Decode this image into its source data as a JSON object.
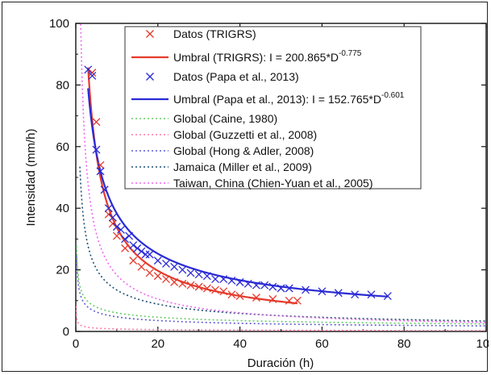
{
  "chart_data": {
    "type": "line",
    "xlabel": "Duración (h)",
    "ylabel": "Intensidad (mm/h)",
    "xlim": [
      0,
      100
    ],
    "ylim": [
      0,
      100
    ],
    "x_ticks": [
      "0",
      "20",
      "40",
      "60",
      "80",
      "100"
    ],
    "y_ticks": [
      "0",
      "20",
      "40",
      "60",
      "80",
      "100"
    ],
    "grid": false,
    "legend_position": "top-right",
    "colors": {
      "trigrs": "#e53b2c",
      "papa": "#2a2ad6",
      "caine": "#66cc66",
      "guzzetti": "#ff7aa8",
      "hong": "#5c5cd6",
      "miller": "#1f4f6f",
      "taiwan": "#ee66ee"
    },
    "series": [
      {
        "key": "datos_trigrs",
        "kind": "scatter",
        "name": "Datos (TRIGRS)",
        "x": [
          4,
          5,
          6,
          7,
          8,
          9,
          10,
          12,
          14,
          16,
          18,
          20,
          22,
          24,
          26,
          28,
          30,
          32,
          34,
          36,
          38,
          40,
          44,
          48,
          52,
          54
        ],
        "y": [
          84,
          68,
          54,
          46,
          38,
          35,
          31,
          27,
          23,
          21,
          19,
          18,
          17,
          16,
          15.5,
          15,
          14.5,
          14,
          13.5,
          13,
          12,
          11.5,
          11,
          10.5,
          10,
          10
        ]
      },
      {
        "key": "umbral_trigrs",
        "kind": "power",
        "name_prefix": "Umbral (TRIGRS): I = 200.865*D",
        "name_exp": "-0.775",
        "a": 200.865,
        "b": -0.775,
        "x_range": [
          3,
          54
        ]
      },
      {
        "key": "datos_papa",
        "kind": "scatter",
        "name": "Datos (Papa et al., 2013)",
        "x": [
          3,
          4,
          5,
          6,
          7,
          8,
          9,
          10,
          11,
          12,
          13,
          14,
          15,
          16,
          17,
          18,
          20,
          22,
          24,
          26,
          28,
          30,
          32,
          34,
          36,
          38,
          40,
          42,
          44,
          46,
          48,
          50,
          52,
          56,
          60,
          64,
          68,
          72,
          76
        ],
        "y": [
          85,
          83,
          59,
          52,
          46,
          40,
          37,
          34,
          33,
          30,
          31,
          28,
          27,
          26,
          25,
          25,
          23,
          22,
          21,
          20,
          19,
          18.5,
          18,
          17,
          17,
          16.5,
          16,
          15.5,
          15,
          15,
          14.5,
          14,
          14,
          13.5,
          13,
          12.5,
          12,
          12,
          11.5
        ]
      },
      {
        "key": "umbral_papa",
        "kind": "power",
        "name_prefix": "Umbral (Papa et al., 2013): I = 152.765*D",
        "name_exp": "-0.601",
        "a": 152.765,
        "b": -0.601,
        "x_range": [
          3,
          76
        ]
      },
      {
        "key": "caine",
        "kind": "power",
        "name": "Global (Caine, 1980)",
        "a": 14.82,
        "b": -0.39,
        "x_range": [
          0.2,
          100
        ]
      },
      {
        "key": "guzzetti",
        "kind": "power",
        "name": "Global (Guzzetti et al., 2008)",
        "a": 2.2,
        "b": -0.44,
        "x_range": [
          0.05,
          100
        ]
      },
      {
        "key": "hong",
        "kind": "power",
        "name": "Global (Hong & Adler, 2008)",
        "a": 12.45,
        "b": -0.42,
        "x_range": [
          0.2,
          100
        ]
      },
      {
        "key": "miller",
        "kind": "power",
        "name": "Jamaica (Miller et al., 2009)",
        "a": 53.5,
        "b": -0.6,
        "x_range": [
          1.0,
          100
        ]
      },
      {
        "key": "taiwan",
        "kind": "power",
        "name": "Taiwan, China (Chien-Yuan et al., 2005)",
        "a": 115.47,
        "b": -0.8,
        "x_range": [
          1.2,
          100
        ]
      }
    ]
  }
}
